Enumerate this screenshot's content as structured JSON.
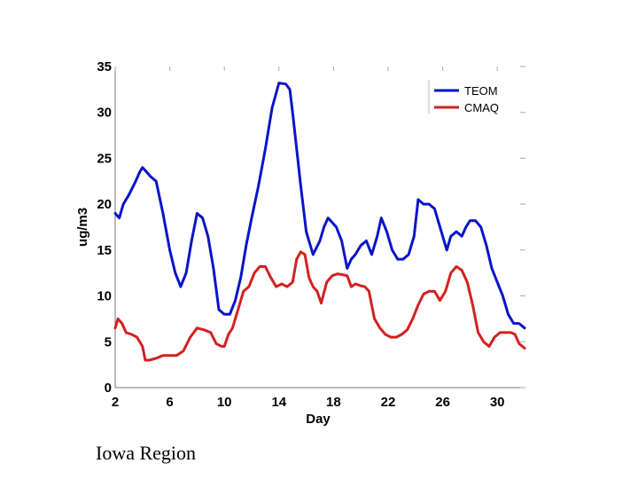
{
  "caption": "Iowa Region",
  "chart_data": {
    "type": "line",
    "title": "",
    "xlabel": "Day",
    "ylabel": "ug/m3",
    "xlim": [
      2,
      32
    ],
    "ylim": [
      0,
      35
    ],
    "xticks": [
      2,
      6,
      10,
      14,
      18,
      22,
      26,
      30
    ],
    "yticks": [
      0,
      5,
      10,
      15,
      20,
      25,
      30,
      35
    ],
    "legend_position": "top-right",
    "grid": false,
    "series": [
      {
        "name": "TEOM",
        "color": "#0a14c8",
        "x": [
          2,
          2.3,
          2.6,
          3,
          3.5,
          3.8,
          4,
          4.3,
          4.6,
          5,
          5.5,
          6,
          6.4,
          6.8,
          7.2,
          7.6,
          8,
          8.4,
          8.8,
          9.2,
          9.6,
          10,
          10.4,
          10.8,
          11.2,
          11.6,
          12,
          12.5,
          13,
          13.5,
          14,
          14.5,
          14.8,
          15,
          15.3,
          15.6,
          16,
          16.5,
          17,
          17.3,
          17.6,
          17.9,
          18.2,
          18.6,
          19,
          19.3,
          19.6,
          20,
          20.4,
          20.8,
          21.2,
          21.5,
          21.9,
          22.3,
          22.7,
          23.1,
          23.5,
          23.9,
          24.2,
          24.6,
          25,
          25.4,
          25.7,
          26,
          26.3,
          26.6,
          27,
          27.4,
          27.7,
          28,
          28.4,
          28.8,
          29.2,
          29.6,
          30,
          30.4,
          30.8,
          31.2,
          31.6,
          32
        ],
        "y": [
          19,
          18.5,
          20,
          21,
          22.5,
          23.5,
          24,
          23.5,
          23,
          22.5,
          19,
          15,
          12.5,
          11,
          12.5,
          16,
          19,
          18.5,
          16.5,
          13,
          8.5,
          8,
          8,
          9.5,
          12,
          15.5,
          18.5,
          22,
          26,
          30.5,
          33.2,
          33.1,
          32.5,
          30,
          26,
          22,
          17,
          14.5,
          16,
          17.5,
          18.5,
          18,
          17.5,
          16,
          13,
          14,
          14.5,
          15.5,
          16,
          14.5,
          16.5,
          18.5,
          17,
          15,
          14,
          14,
          14.5,
          16.5,
          20.5,
          20,
          20,
          19.5,
          18,
          16.5,
          15,
          16.5,
          17,
          16.5,
          17.5,
          18.2,
          18.2,
          17.5,
          15.5,
          13,
          11.5,
          10,
          8,
          7,
          7,
          6.5
        ]
      },
      {
        "name": "CMAQ",
        "color": "#d42020",
        "x": [
          2,
          2.2,
          2.5,
          2.8,
          3.2,
          3.6,
          4,
          4.2,
          4.5,
          5,
          5.5,
          6,
          6.5,
          7,
          7.5,
          8,
          8.5,
          9,
          9.4,
          9.8,
          10,
          10.3,
          10.6,
          11,
          11.4,
          11.8,
          12.2,
          12.6,
          13,
          13.4,
          13.8,
          14.2,
          14.6,
          15,
          15.3,
          15.6,
          15.9,
          16.2,
          16.5,
          16.8,
          17.1,
          17.5,
          17.9,
          18.3,
          18.7,
          19,
          19.3,
          19.6,
          20,
          20.3,
          20.6,
          21,
          21.4,
          21.8,
          22.2,
          22.6,
          23,
          23.4,
          23.8,
          24.2,
          24.6,
          25,
          25.4,
          25.8,
          26.2,
          26.6,
          27,
          27.4,
          27.8,
          28.2,
          28.6,
          29,
          29.4,
          29.8,
          30.2,
          30.6,
          31,
          31.3,
          31.6,
          32
        ],
        "y": [
          6.5,
          7.5,
          7,
          6,
          5.8,
          5.5,
          4.5,
          3,
          3,
          3.2,
          3.5,
          3.5,
          3.5,
          4,
          5.5,
          6.5,
          6.3,
          6,
          4.8,
          4.5,
          4.5,
          5.8,
          6.5,
          8.5,
          10.5,
          11,
          12.5,
          13.2,
          13.2,
          12,
          11,
          11.3,
          11,
          11.5,
          14,
          14.8,
          14.5,
          12,
          11,
          10.5,
          9.2,
          11.5,
          12.2,
          12.4,
          12.3,
          12.2,
          11,
          11.3,
          11.1,
          11,
          10.5,
          7.5,
          6.5,
          5.8,
          5.5,
          5.5,
          5.8,
          6.3,
          7.5,
          9,
          10.2,
          10.5,
          10.5,
          9.5,
          10.5,
          12.5,
          13.2,
          12.8,
          11.5,
          9,
          6,
          5,
          4.5,
          5.5,
          6,
          6,
          6,
          5.8,
          4.8,
          4.3
        ]
      }
    ]
  }
}
